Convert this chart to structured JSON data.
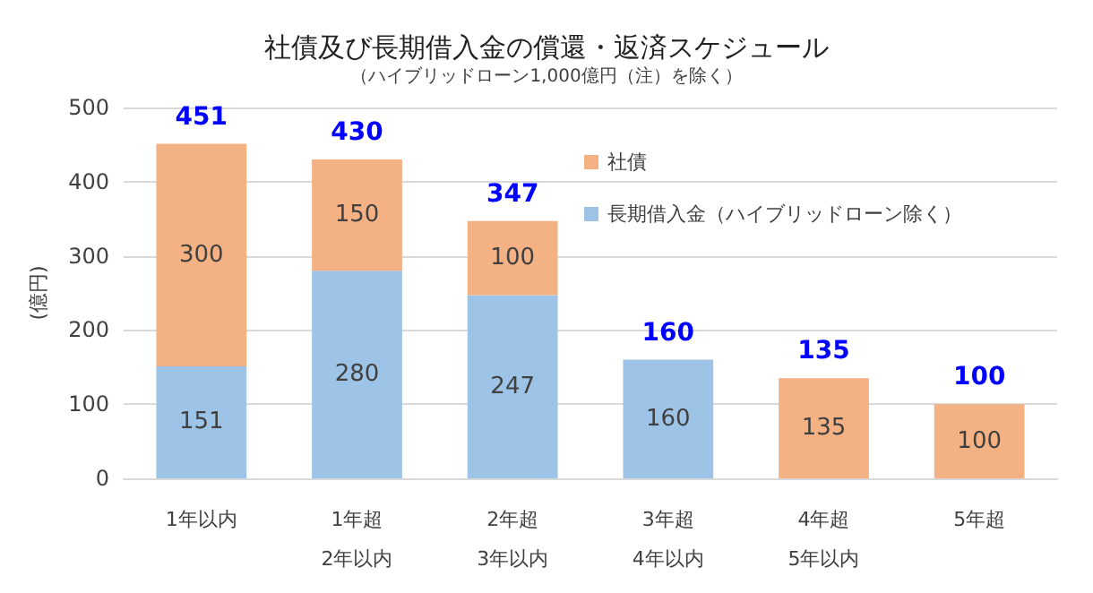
{
  "chart_data": {
    "type": "bar",
    "title": "社債及び長期借入金の償還・返済スケジュール",
    "subtitle": "（ハイブリッドローン1,000億円（注）を除く）",
    "ylabel": "(億円)",
    "categories": [
      "1年以内",
      "1年超\n2年以内",
      "2年超\n3年以内",
      "3年超\n4年以内",
      "4年超\n5年以内",
      "5年超"
    ],
    "stacked": true,
    "series": [
      {
        "name": "長期借入金（ハイブリッドローン除く）",
        "color": "#9dc3e6",
        "values": [
          151,
          280,
          247,
          160,
          null,
          null
        ]
      },
      {
        "name": "社債",
        "color": "#f4b183",
        "values": [
          300,
          150,
          100,
          null,
          135,
          100
        ]
      }
    ],
    "totals": [
      "451",
      "430",
      "347",
      "160",
      "135",
      "100"
    ],
    "data_labels": true,
    "ylim": [
      0,
      500
    ],
    "yticks": [
      0,
      100,
      200,
      300,
      400,
      500
    ],
    "grid": "y",
    "legend": "top right"
  }
}
